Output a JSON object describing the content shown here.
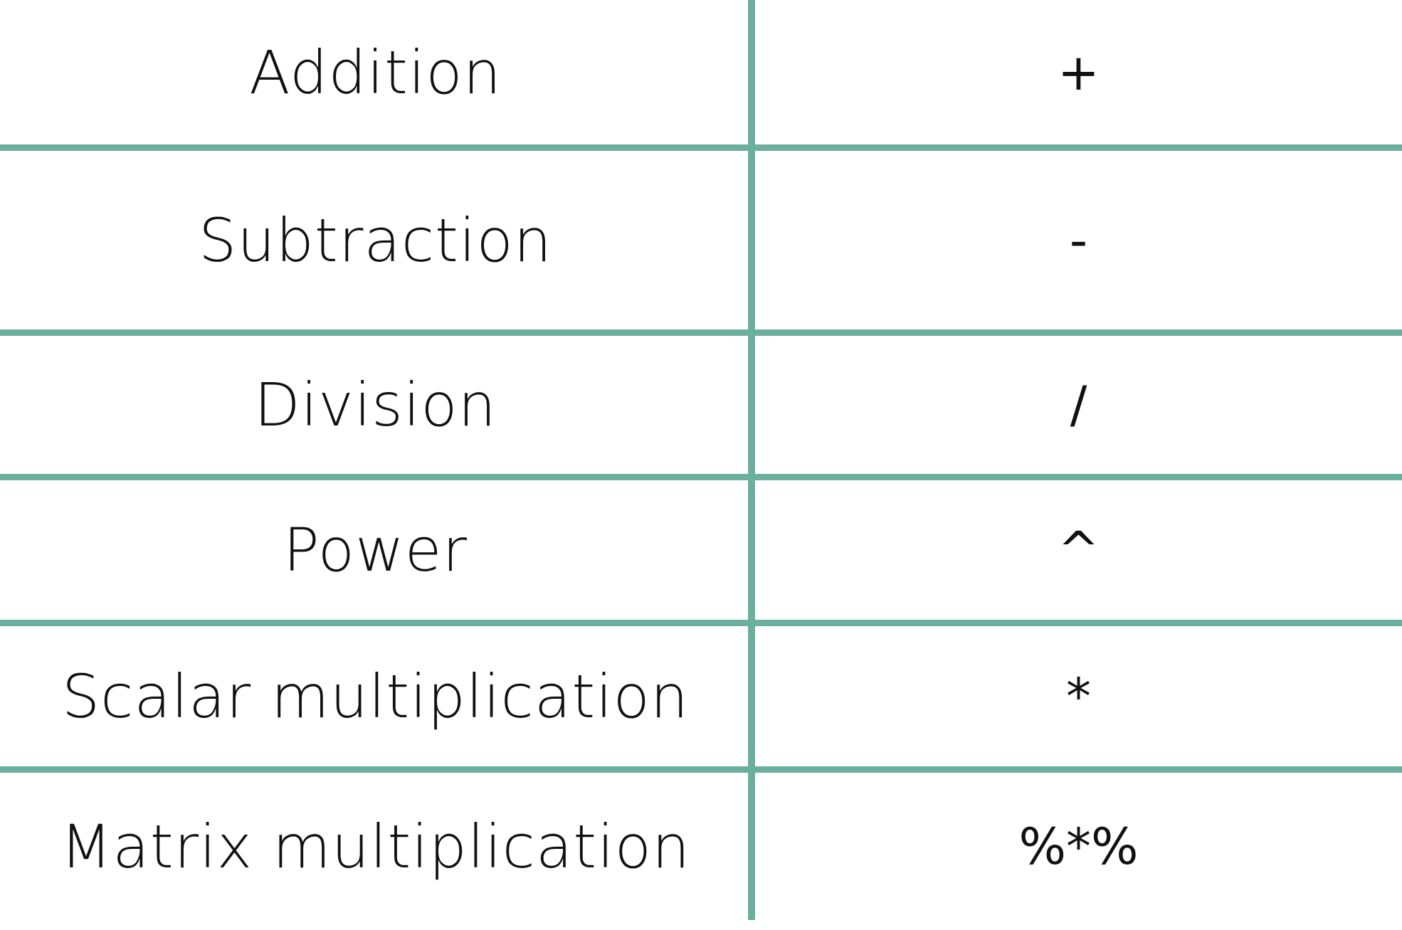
{
  "table": {
    "rows": [
      {
        "operation": "Addition",
        "symbol": "+"
      },
      {
        "operation": "Subtraction",
        "symbol": "-"
      },
      {
        "operation": "Division",
        "symbol": "/"
      },
      {
        "operation": "Power",
        "symbol": "^"
      },
      {
        "operation": "Scalar multiplication",
        "symbol": "*"
      },
      {
        "operation": "Matrix multiplication",
        "symbol": "%*%"
      }
    ]
  },
  "colors": {
    "grid_lines": "#6BAF9F",
    "text": "#111111",
    "background": "#FFFFFF"
  }
}
